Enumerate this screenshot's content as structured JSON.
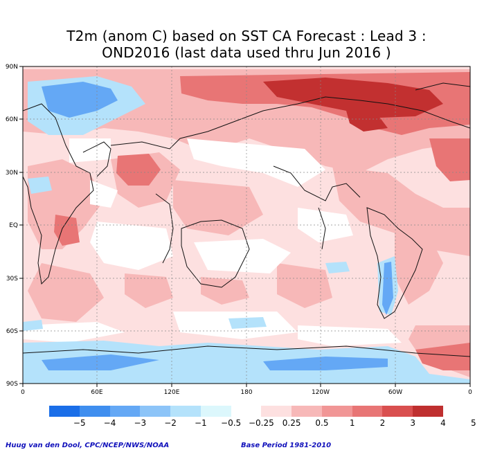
{
  "title": {
    "line1": "T2m (anom C) based on SST CA Forecast : Lead 3 :",
    "line2": "OND2016 (last data used thru Jun 2016 )"
  },
  "map": {
    "lat_labels": [
      "90N",
      "60N",
      "30N",
      "EQ",
      "30S",
      "60S",
      "90S"
    ],
    "lon_labels": [
      "0",
      "60E",
      "120E",
      "180",
      "120W",
      "60W",
      "0"
    ]
  },
  "colorbar": {
    "labels": [
      "−5",
      "−4",
      "−3",
      "−2",
      "−1",
      "−0.5",
      "−0.25",
      "0.25",
      "0.5",
      "1",
      "2",
      "3",
      "4",
      "5"
    ],
    "colors": [
      "#1a6ee8",
      "#3f8eef",
      "#64a8f5",
      "#8cc4f8",
      "#b4e2fb",
      "#dcf7fc",
      "#ffffff",
      "#fde0e0",
      "#f7b8b8",
      "#f19696",
      "#e87575",
      "#d94f4f",
      "#bf2f2f"
    ]
  },
  "footer": {
    "credit": "Huug van den Dool, CPC/NCEP/NWS/NOAA",
    "base_period": "Base Period 1981-2010"
  },
  "colors": {
    "warm_strong": "#c23030",
    "warm_mid": "#e87575",
    "warm_light": "#f7b8b8",
    "cool_light": "#b4e2fb",
    "cool_mid": "#64a8f5"
  }
}
